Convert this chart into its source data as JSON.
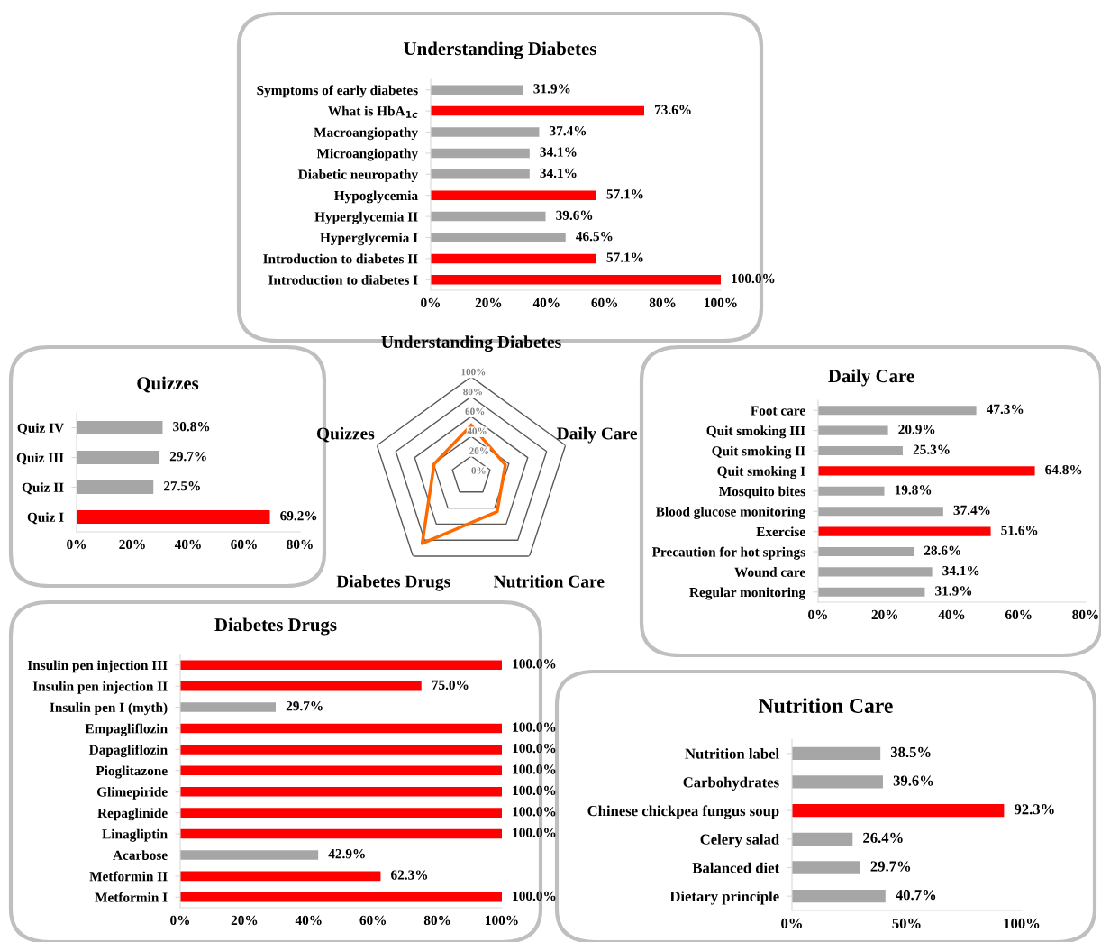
{
  "chart_data": [
    {
      "type": "bar",
      "orientation": "horizontal",
      "title": "Understanding Diabetes",
      "categories": [
        "Symptoms of early diabetes",
        "What is HbA$_{1c}$",
        "Macroangiopathy",
        "Microangiopathy",
        "Diabetic neuropathy",
        "Hypoglycemia",
        "Hyperglycemia II",
        "Hyperglycemia I",
        "Introduction to diabetes II",
        "Introduction to diabetes I"
      ],
      "values": [
        31.9,
        73.6,
        37.4,
        34.1,
        34.1,
        57.1,
        39.6,
        46.5,
        57.1,
        100.0
      ],
      "value_labels": [
        "31.9%",
        "73.6%",
        "37.4%",
        "34.1%",
        "34.1%",
        "57.1%",
        "39.6%",
        "46.5%",
        "57.1%",
        "100.0%"
      ],
      "colors": [
        "#a6a6a6",
        "#ff0000",
        "#a6a6a6",
        "#a6a6a6",
        "#a6a6a6",
        "#ff0000",
        "#a6a6a6",
        "#a6a6a6",
        "#ff0000",
        "#ff0000"
      ],
      "xlim": [
        0,
        100
      ],
      "xticks": [
        {
          "value": 0,
          "label": "0%"
        },
        {
          "value": 20,
          "label": "20%"
        },
        {
          "value": 40,
          "label": "40%"
        },
        {
          "value": 60,
          "label": "60%"
        },
        {
          "value": 80,
          "label": "80%"
        },
        {
          "value": 100,
          "label": "100%"
        }
      ]
    },
    {
      "type": "bar",
      "orientation": "horizontal",
      "title": "Quizzes",
      "categories": [
        "Quiz IV",
        "Quiz III",
        "Quiz II",
        "Quiz I"
      ],
      "values": [
        30.8,
        29.7,
        27.5,
        69.2
      ],
      "value_labels": [
        "30.8%",
        "29.7%",
        "27.5%",
        "69.2%"
      ],
      "colors": [
        "#a6a6a6",
        "#a6a6a6",
        "#a6a6a6",
        "#ff0000"
      ],
      "xlim": [
        0,
        80
      ],
      "xticks": [
        {
          "value": 0,
          "label": "0%"
        },
        {
          "value": 20,
          "label": "20%"
        },
        {
          "value": 40,
          "label": "40%"
        },
        {
          "value": 60,
          "label": "60%"
        },
        {
          "value": 80,
          "label": "80%"
        }
      ]
    },
    {
      "type": "radar",
      "categories": [
        "Understanding Diabetes",
        "Daily Care",
        "Nutrition Care",
        "Diabetes Drugs",
        "Quizzes"
      ],
      "series": [
        {
          "color": "#ff6a00",
          "values": [
            51.1,
            36.2,
            44.5,
            84.2,
            39.3
          ]
        }
      ],
      "ylim": [
        0,
        100
      ],
      "yticks": [
        {
          "value": 0,
          "label": "0%"
        },
        {
          "value": 20,
          "label": "20%"
        },
        {
          "value": 40,
          "label": "40%"
        },
        {
          "value": 60,
          "label": "60%"
        },
        {
          "value": 80,
          "label": "80%"
        },
        {
          "value": 100,
          "label": "100%"
        }
      ],
      "grid": true
    },
    {
      "type": "bar",
      "orientation": "horizontal",
      "title": "Daily Care",
      "categories": [
        "Foot care",
        "Quit smoking III",
        "Quit smoking II",
        "Quit smoking I",
        "Mosquito bites",
        "Blood glucose monitoring",
        "Exercise",
        "Precaution for hot springs",
        "Wound care",
        "Regular monitoring"
      ],
      "values": [
        47.3,
        20.9,
        25.3,
        64.8,
        19.8,
        37.4,
        51.6,
        28.6,
        34.1,
        31.9
      ],
      "value_labels": [
        "47.3%",
        "20.9%",
        "25.3%",
        "64.8%",
        "19.8%",
        "37.4%",
        "51.6%",
        "28.6%",
        "34.1%",
        "31.9%"
      ],
      "colors": [
        "#a6a6a6",
        "#a6a6a6",
        "#a6a6a6",
        "#ff0000",
        "#a6a6a6",
        "#a6a6a6",
        "#ff0000",
        "#a6a6a6",
        "#a6a6a6",
        "#a6a6a6"
      ],
      "xlim": [
        0,
        80
      ],
      "xticks": [
        {
          "value": 0,
          "label": "0%"
        },
        {
          "value": 20,
          "label": "20%"
        },
        {
          "value": 40,
          "label": "40%"
        },
        {
          "value": 60,
          "label": "60%"
        },
        {
          "value": 80,
          "label": "80%"
        }
      ]
    },
    {
      "type": "bar",
      "orientation": "horizontal",
      "title": "Diabetes Drugs",
      "categories": [
        "Insulin pen injection III",
        "Insulin pen injection II",
        "Insulin pen I (myth)",
        "Empagliflozin",
        "Dapagliflozin",
        "Pioglitazone",
        "Glimepiride",
        "Repaglinide",
        "Linagliptin",
        "Acarbose",
        "Metformin II",
        "Metformin I"
      ],
      "values": [
        100.0,
        75.0,
        29.7,
        100.0,
        100.0,
        100.0,
        100.0,
        100.0,
        100.0,
        42.9,
        62.3,
        100.0
      ],
      "value_labels": [
        "100.0%",
        "75.0%",
        "29.7%",
        "100.0%",
        "100.0%",
        "100.0%",
        "100.0%",
        "100.0%",
        "100.0%",
        "42.9%",
        "62.3%",
        "100.0%"
      ],
      "colors": [
        "#ff0000",
        "#ff0000",
        "#a6a6a6",
        "#ff0000",
        "#ff0000",
        "#ff0000",
        "#ff0000",
        "#ff0000",
        "#ff0000",
        "#a6a6a6",
        "#ff0000",
        "#ff0000"
      ],
      "xlim": [
        0,
        100
      ],
      "xticks": [
        {
          "value": 0,
          "label": "0%"
        },
        {
          "value": 20,
          "label": "20%"
        },
        {
          "value": 40,
          "label": "40%"
        },
        {
          "value": 60,
          "label": "60%"
        },
        {
          "value": 80,
          "label": "80%"
        },
        {
          "value": 100,
          "label": "100%"
        }
      ]
    },
    {
      "type": "bar",
      "orientation": "horizontal",
      "title": "Nutrition Care",
      "categories": [
        "Nutrition label",
        "Carbohydrates",
        "Chinese chickpea fungus soup",
        "Celery salad",
        "Balanced diet",
        "Dietary principle"
      ],
      "values": [
        38.5,
        39.6,
        92.3,
        26.4,
        29.7,
        40.7
      ],
      "value_labels": [
        "38.5%",
        "39.6%",
        "92.3%",
        "26.4%",
        "29.7%",
        "40.7%"
      ],
      "colors": [
        "#a6a6a6",
        "#a6a6a6",
        "#ff0000",
        "#a6a6a6",
        "#a6a6a6",
        "#a6a6a6"
      ],
      "xlim": [
        0,
        100
      ],
      "xticks": [
        {
          "value": 0,
          "label": "0%"
        },
        {
          "value": 50,
          "label": "50%"
        },
        {
          "value": 100,
          "label": "100%"
        }
      ]
    }
  ]
}
